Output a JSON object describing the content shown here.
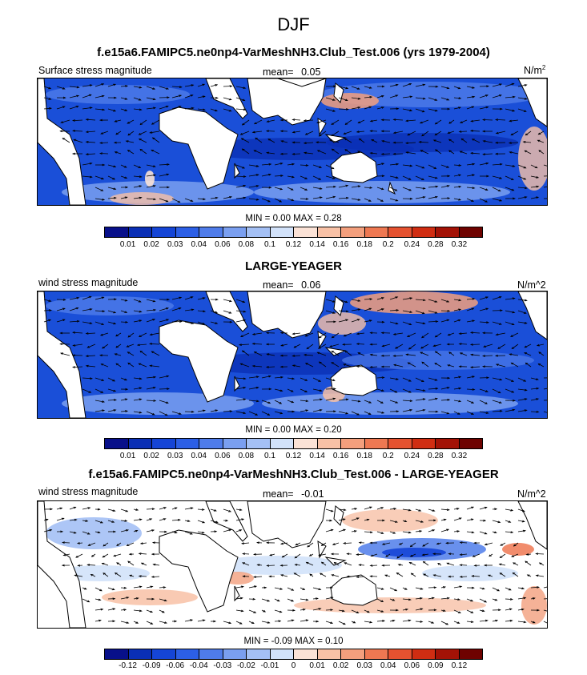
{
  "main_title": "DJF",
  "panels": [
    {
      "title": "f.e15a6.FAMIPC5.ne0np4-VarMeshNH3.Club_Test.006 (yrs 1979-2004)",
      "left_label": "Surface stress magnitude",
      "mean_label": "mean=",
      "mean_value": "0.05",
      "units_base": "N/m",
      "units_sup": "2",
      "min_label": "MIN =",
      "min_value": "0.00",
      "max_label": "MAX =",
      "max_value": "0.28",
      "ticks": [
        "0.01",
        "0.02",
        "0.03",
        "0.04",
        "0.06",
        "0.08",
        "0.1",
        "0.12",
        "0.14",
        "0.16",
        "0.18",
        "0.2",
        "0.24",
        "0.28",
        "0.32"
      ]
    },
    {
      "title": "LARGE-YEAGER",
      "left_label": "wind stress magnitude",
      "mean_label": "mean=",
      "mean_value": "0.06",
      "units": "N/m^2",
      "min_label": "MIN =",
      "min_value": "0.00",
      "max_label": "MAX =",
      "max_value": "0.20",
      "ticks": [
        "0.01",
        "0.02",
        "0.03",
        "0.04",
        "0.06",
        "0.08",
        "0.1",
        "0.12",
        "0.14",
        "0.16",
        "0.18",
        "0.2",
        "0.24",
        "0.28",
        "0.32"
      ]
    },
    {
      "title": "f.e15a6.FAMIPC5.ne0np4-VarMeshNH3.Club_Test.006 - LARGE-YEAGER",
      "left_label": "wind stress magnitude",
      "mean_label": "mean=",
      "mean_value": "-0.01",
      "units": "N/m^2",
      "min_label": "MIN =",
      "min_value": "-0.09",
      "max_label": "MAX =",
      "max_value": "0.10",
      "ticks": [
        "-0.12",
        "-0.09",
        "-0.06",
        "-0.04",
        "-0.03",
        "-0.02",
        "-0.01",
        "0",
        "0.01",
        "0.02",
        "0.03",
        "0.04",
        "0.06",
        "0.09",
        "0.12"
      ]
    }
  ],
  "colors": {
    "palette": [
      "#08108a",
      "#0a2fb5",
      "#1545d6",
      "#2c5fe6",
      "#4f7cea",
      "#7a9ff0",
      "#a4c0f5",
      "#d2e2fa",
      "#fbe2d6",
      "#f8c1a6",
      "#f39f7d",
      "#ee7852",
      "#e55230",
      "#d02d12",
      "#a31206",
      "#6e0200"
    ],
    "land": "#ffffff",
    "coast": "#000000"
  }
}
